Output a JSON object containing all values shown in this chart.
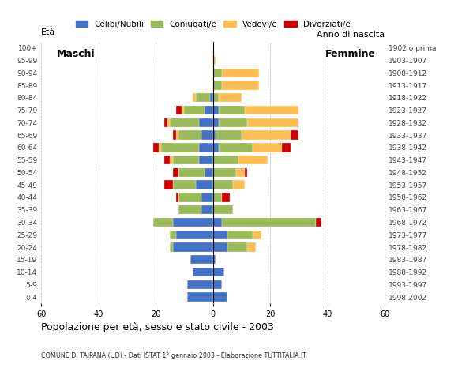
{
  "title": "Popolazione per età, sesso e stato civile - 2003",
  "subtitle": "COMUNE DI TAIPANA (UD) - Dati ISTAT 1° gennaio 2003 - Elaborazione TUTTITALIA.IT",
  "ylabel_left": "Età",
  "ylabel_right": "Anno di nascita",
  "xlim": 60,
  "age_groups_bottom_to_top": [
    "0-4",
    "5-9",
    "10-14",
    "15-19",
    "20-24",
    "25-29",
    "30-34",
    "35-39",
    "40-44",
    "45-49",
    "50-54",
    "55-59",
    "60-64",
    "65-69",
    "70-74",
    "75-79",
    "80-84",
    "85-89",
    "90-94",
    "95-99",
    "100+"
  ],
  "birth_years_bottom_to_top": [
    "1998-2002",
    "1993-1997",
    "1988-1992",
    "1983-1987",
    "1978-1982",
    "1973-1977",
    "1968-1972",
    "1963-1967",
    "1958-1962",
    "1953-1957",
    "1948-1952",
    "1943-1947",
    "1938-1942",
    "1933-1937",
    "1928-1932",
    "1923-1927",
    "1918-1922",
    "1913-1917",
    "1908-1912",
    "1903-1907",
    "1902 o prima"
  ],
  "colors": {
    "celibi": "#4472C4",
    "coniugati": "#9BBB59",
    "vedovi": "#FFBE55",
    "divorziati": "#CC0000"
  },
  "legend_labels": [
    "Celibi/Nubili",
    "Coniugati/e",
    "Vedovi/e",
    "Divorziati/e"
  ],
  "maschi_bottom_to_top": {
    "celibi": [
      9,
      9,
      7,
      8,
      14,
      13,
      14,
      4,
      4,
      6,
      3,
      5,
      5,
      4,
      5,
      3,
      1,
      0,
      0,
      0,
      0
    ],
    "coniugati": [
      0,
      0,
      0,
      0,
      1,
      2,
      7,
      8,
      8,
      8,
      9,
      9,
      13,
      8,
      10,
      7,
      5,
      0,
      0,
      0,
      0
    ],
    "vedovi": [
      0,
      0,
      0,
      0,
      0,
      0,
      0,
      0,
      0,
      0,
      0,
      1,
      1,
      1,
      1,
      1,
      1,
      0,
      0,
      0,
      0
    ],
    "divorziati": [
      0,
      0,
      0,
      0,
      0,
      0,
      0,
      0,
      1,
      3,
      2,
      2,
      2,
      1,
      1,
      2,
      0,
      0,
      0,
      0,
      0
    ]
  },
  "femmine_bottom_to_top": {
    "nubili": [
      5,
      3,
      4,
      1,
      5,
      5,
      3,
      0,
      0,
      0,
      0,
      0,
      2,
      1,
      2,
      2,
      0,
      0,
      0,
      0,
      0
    ],
    "coniugate": [
      0,
      0,
      0,
      0,
      7,
      9,
      33,
      7,
      3,
      7,
      8,
      9,
      12,
      9,
      10,
      9,
      2,
      3,
      3,
      0,
      0
    ],
    "vedove": [
      0,
      0,
      0,
      0,
      3,
      3,
      0,
      0,
      0,
      4,
      3,
      10,
      10,
      17,
      18,
      19,
      8,
      13,
      13,
      1,
      0
    ],
    "divorziate": [
      0,
      0,
      0,
      0,
      0,
      0,
      2,
      0,
      3,
      0,
      1,
      0,
      3,
      3,
      0,
      0,
      0,
      0,
      0,
      0,
      0
    ]
  }
}
